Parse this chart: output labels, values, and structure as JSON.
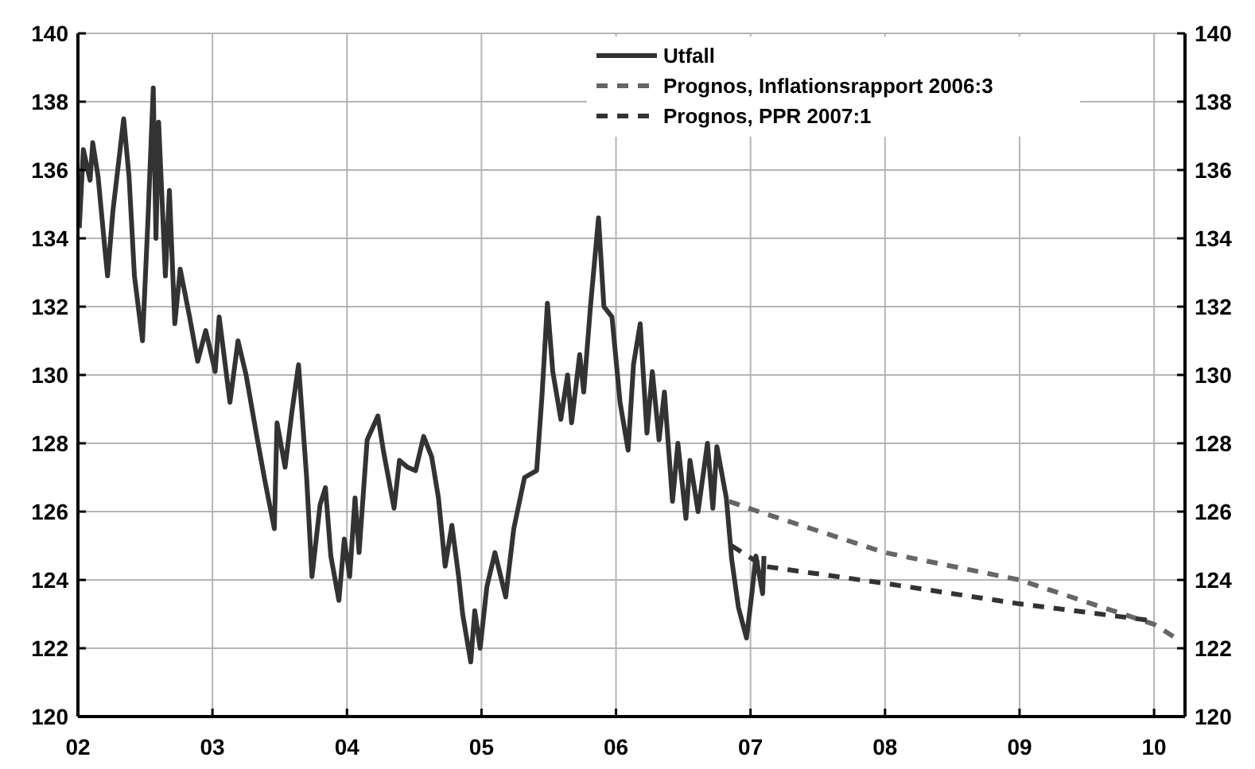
{
  "chart_data": {
    "type": "line",
    "xlim": [
      2002,
      2010.23
    ],
    "ylim": [
      120,
      140
    ],
    "y2lim": [
      120,
      140
    ],
    "xticks": [
      {
        "value": 2002,
        "label": "02"
      },
      {
        "value": 2003,
        "label": "03"
      },
      {
        "value": 2004,
        "label": "04"
      },
      {
        "value": 2005,
        "label": "05"
      },
      {
        "value": 2006,
        "label": "06"
      },
      {
        "value": 2007,
        "label": "07"
      },
      {
        "value": 2008,
        "label": "08"
      },
      {
        "value": 2009,
        "label": "09"
      },
      {
        "value": 2010,
        "label": "10"
      }
    ],
    "yticks": [
      120,
      122,
      124,
      126,
      128,
      130,
      132,
      134,
      136,
      138,
      140
    ],
    "y2ticks": [
      120,
      122,
      124,
      126,
      128,
      130,
      132,
      134,
      136,
      138,
      140
    ],
    "grid": true,
    "legend": "top right",
    "marker": "none",
    "series": [
      {
        "name": "Utfall",
        "color": "#333333",
        "line_style": "solid",
        "x": [
          2002.01,
          2002.04,
          2002.09,
          2002.11,
          2002.15,
          2002.2,
          2002.22,
          2002.26,
          2002.34,
          2002.38,
          2002.42,
          2002.48,
          2002.52,
          2002.56,
          2002.58,
          2002.6,
          2002.65,
          2002.68,
          2002.72,
          2002.76,
          2002.83,
          2002.89,
          2002.95,
          2003.02,
          2003.05,
          2003.13,
          2003.19,
          2003.25,
          2003.33,
          2003.39,
          2003.46,
          2003.48,
          2003.54,
          2003.59,
          2003.64,
          2003.7,
          2003.74,
          2003.8,
          2003.84,
          2003.88,
          2003.94,
          2003.98,
          2004.02,
          2004.06,
          2004.09,
          2004.15,
          2004.23,
          2004.27,
          2004.35,
          2004.39,
          2004.45,
          2004.51,
          2004.57,
          2004.63,
          2004.68,
          2004.73,
          2004.78,
          2004.83,
          2004.86,
          2004.92,
          2004.95,
          2004.99,
          2005.04,
          2005.1,
          2005.18,
          2005.24,
          2005.32,
          2005.41,
          2005.45,
          2005.49,
          2005.53,
          2005.59,
          2005.64,
          2005.67,
          2005.73,
          2005.76,
          2005.81,
          2005.87,
          2005.91,
          2005.97,
          2006.03,
          2006.09,
          2006.13,
          2006.18,
          2006.23,
          2006.27,
          2006.32,
          2006.36,
          2006.42,
          2006.46,
          2006.52,
          2006.55,
          2006.61,
          2006.68,
          2006.72,
          2006.75,
          2006.82,
          2006.86,
          2006.91,
          2006.97,
          2007.01,
          2007.04,
          2007.09,
          2007.1
        ],
        "values": [
          134.3,
          136.6,
          135.7,
          136.8,
          135.8,
          133.7,
          132.9,
          134.8,
          137.5,
          135.8,
          132.9,
          131.0,
          134.5,
          138.4,
          134.0,
          137.4,
          132.9,
          135.4,
          131.5,
          133.1,
          131.7,
          130.4,
          131.3,
          130.1,
          131.7,
          129.2,
          131.0,
          130.0,
          128.2,
          126.9,
          125.5,
          128.6,
          127.3,
          128.9,
          130.3,
          127.0,
          124.1,
          126.2,
          126.7,
          124.7,
          123.4,
          125.2,
          124.1,
          126.4,
          124.8,
          128.1,
          128.8,
          127.8,
          126.1,
          127.5,
          127.3,
          127.2,
          128.2,
          127.6,
          126.4,
          124.4,
          125.6,
          124.1,
          123.0,
          121.6,
          123.1,
          122.0,
          123.8,
          124.8,
          123.5,
          125.5,
          127.0,
          127.2,
          129.4,
          132.1,
          130.1,
          128.7,
          130.0,
          128.6,
          130.6,
          129.5,
          132.0,
          134.6,
          132.0,
          131.7,
          129.2,
          127.8,
          130.3,
          131.5,
          128.3,
          130.1,
          128.1,
          129.5,
          126.3,
          128.0,
          125.8,
          127.5,
          126.0,
          128.0,
          126.1,
          127.9,
          126.4,
          124.6,
          123.2,
          122.3,
          123.6,
          124.7,
          123.6,
          124.7
        ]
      },
      {
        "name": "Prognos, Inflationsrapport 2006:3",
        "color": "#666666",
        "line_style": "dashed",
        "x": [
          2006.84,
          2007.06,
          2008.0,
          2009.0,
          2010.0,
          2010.16
        ],
        "values": [
          126.3,
          126.0,
          124.8,
          124.0,
          122.7,
          122.3
        ]
      },
      {
        "name": "Prognos, PPR 2007:1",
        "color": "#333333",
        "line_style": "dashed",
        "x": [
          2006.86,
          2007.1,
          2008.0,
          2009.0,
          2010.0
        ],
        "values": [
          125.0,
          124.4,
          123.9,
          123.3,
          122.8
        ]
      }
    ]
  }
}
